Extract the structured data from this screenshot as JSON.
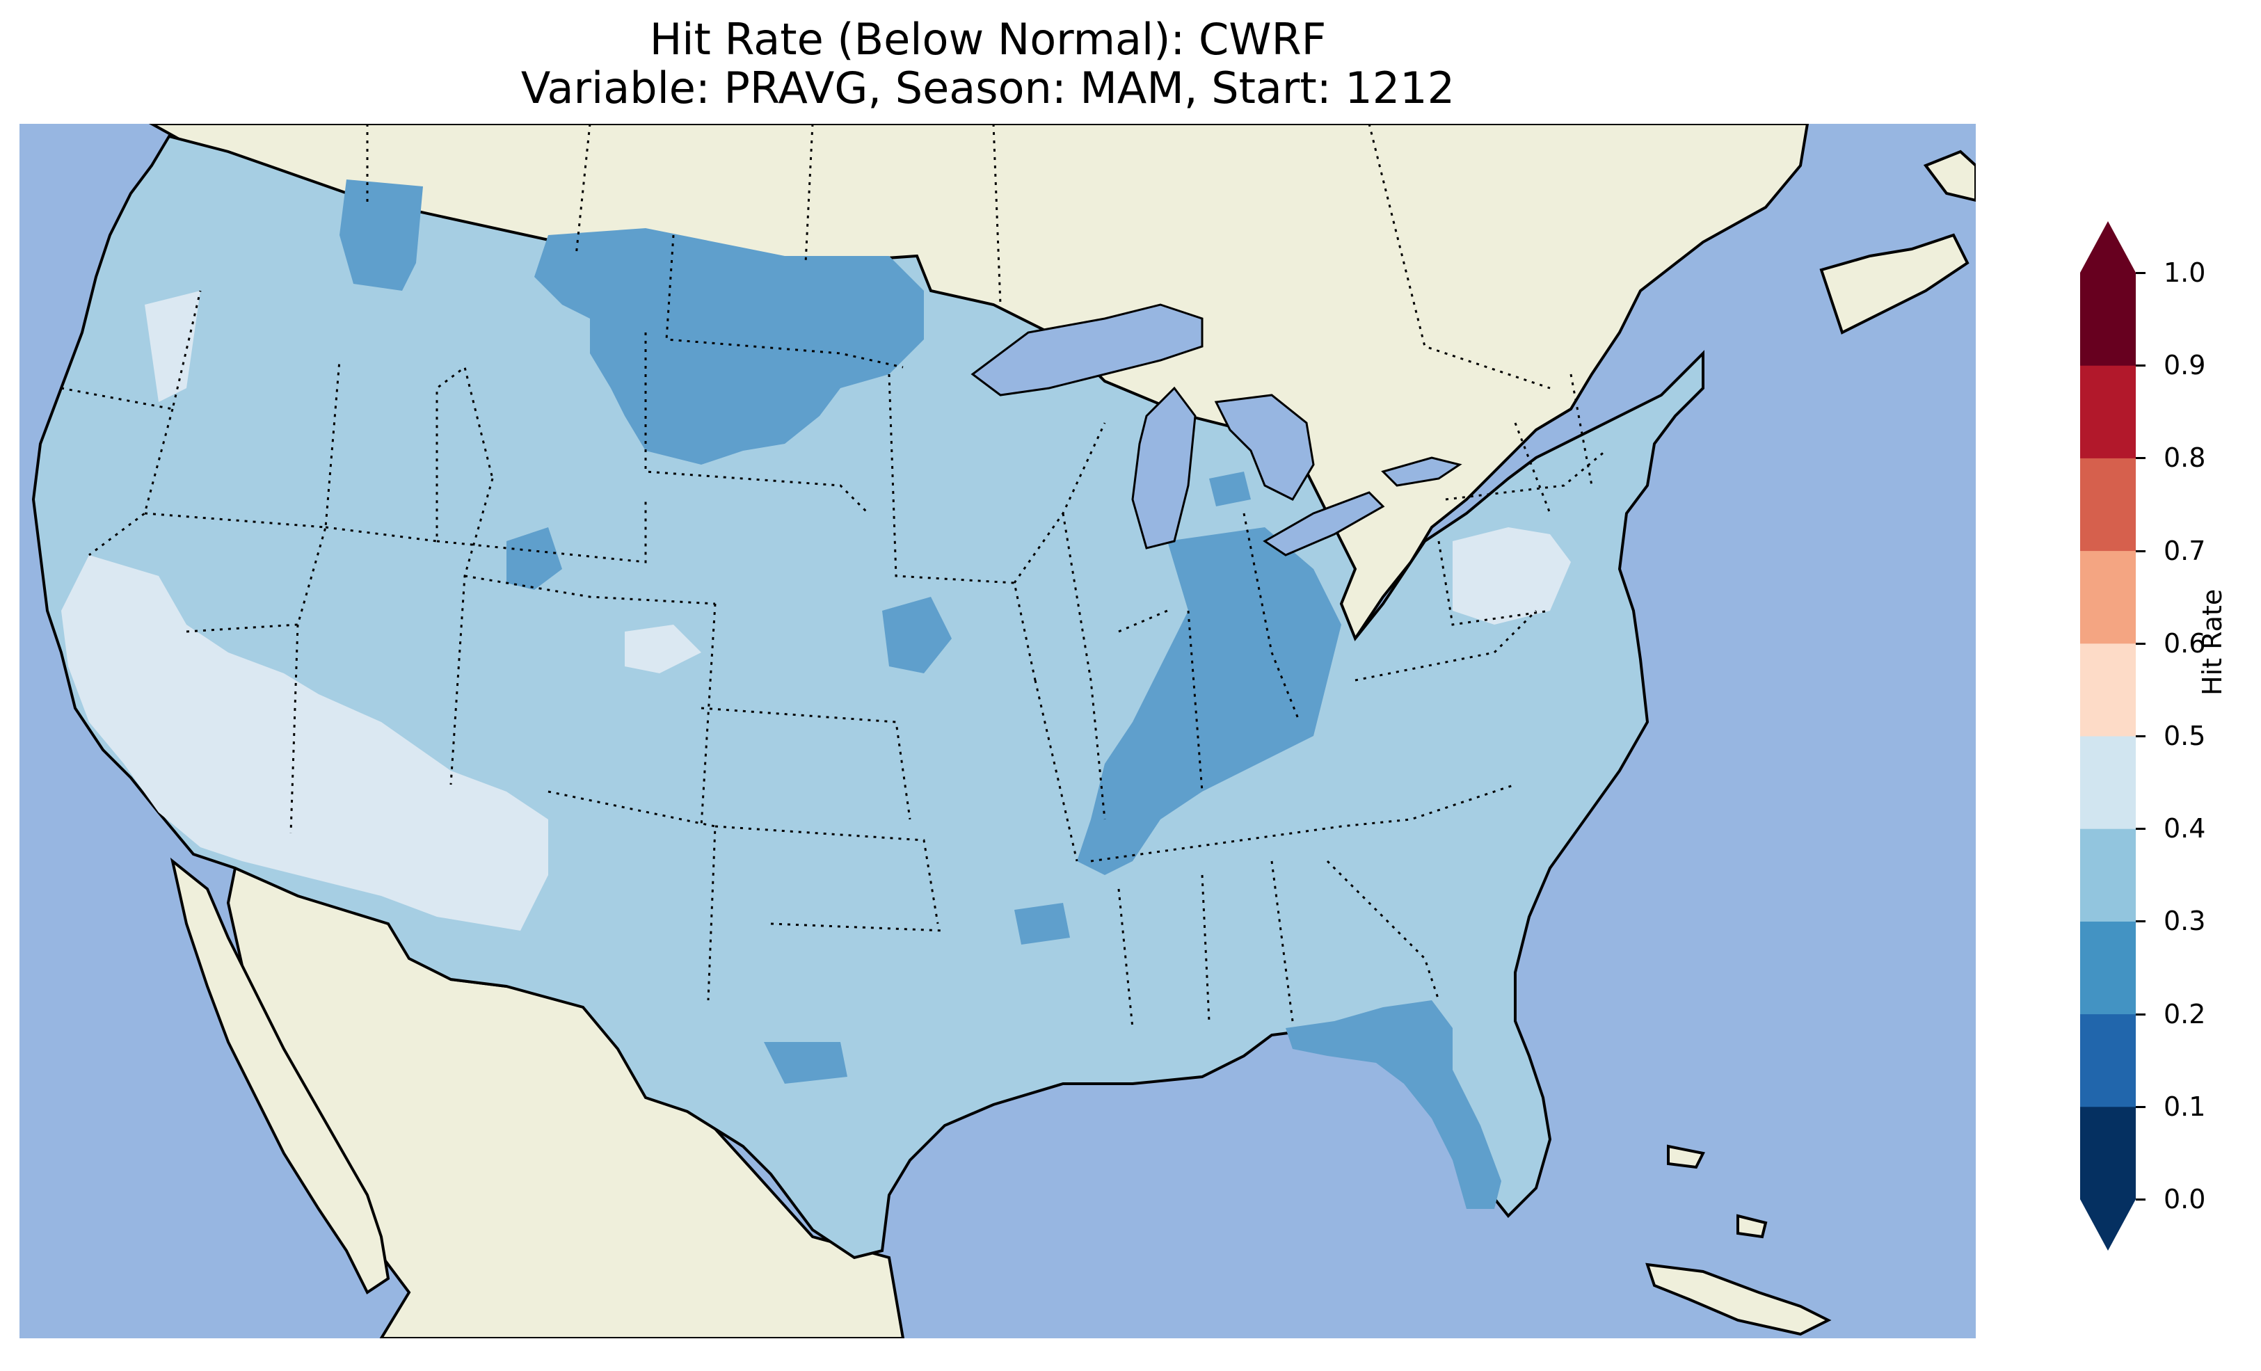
{
  "title": "Hit Rate (Below Normal): CWRF",
  "subtitle": "Variable: PRAVG, Season: MAM, Start: 1212",
  "colorbar": {
    "label": "Hit Rate",
    "ticks": [
      "0.0",
      "0.1",
      "0.2",
      "0.3",
      "0.4",
      "0.5",
      "0.6",
      "0.7",
      "0.8",
      "0.9",
      "1.0"
    ],
    "colors": [
      "#053061",
      "#2166ac",
      "#4393c3",
      "#92c5de",
      "#d1e5f0",
      "#fddbc7",
      "#f4a582",
      "#d6604d",
      "#b2182b",
      "#67001f"
    ],
    "extend": "both"
  },
  "map": {
    "ocean_color": "#97b6e1",
    "land_color": "#efefdb",
    "lake_color": "#97b6e1"
  },
  "chart_data": {
    "type": "heatmap",
    "title": "Hit Rate (Below Normal): CWRF",
    "subtitle": "Variable: PRAVG, Season: MAM, Start: 1212",
    "variable": "PRAVG",
    "season": "MAM",
    "start": "1212",
    "colorbar_label": "Hit Rate",
    "levels": [
      0.0,
      0.1,
      0.2,
      0.3,
      0.4,
      0.5,
      0.6,
      0.7,
      0.8,
      0.9,
      1.0
    ],
    "range": [
      0,
      1
    ],
    "predominant_class": "0.3-0.4",
    "regions": [
      {
        "region": "Northern Plains (ND/SD/MT east)",
        "class": "0.2-0.3"
      },
      {
        "region": "Ohio Valley / Kentucky / Indiana",
        "class": "0.2-0.3"
      },
      {
        "region": "Florida peninsula",
        "class": "0.2-0.3"
      },
      {
        "region": "Southwest (NV/AZ/S. CA)",
        "class": "0.4-0.5"
      },
      {
        "region": "Pennsylvania",
        "class": "0.4-0.5"
      },
      {
        "region": "Remainder of CONUS",
        "class": "0.3-0.4"
      }
    ]
  }
}
